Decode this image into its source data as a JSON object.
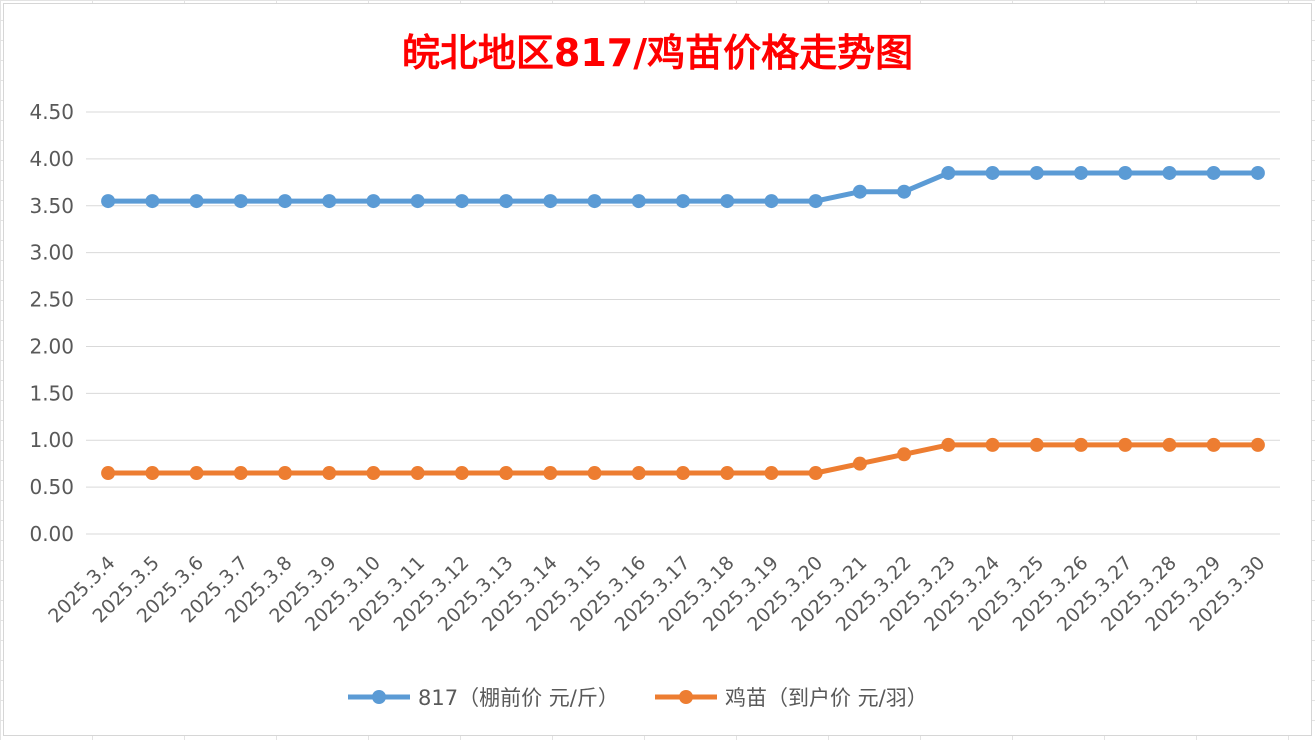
{
  "chart_data": {
    "type": "line",
    "title": "皖北地区817/鸡苗价格走势图",
    "categories": [
      "2025.3.4",
      "2025.3.5",
      "2025.3.6",
      "2025.3.7",
      "2025.3.8",
      "2025.3.9",
      "2025.3.10",
      "2025.3.11",
      "2025.3.12",
      "2025.3.13",
      "2025.3.14",
      "2025.3.15",
      "2025.3.16",
      "2025.3.17",
      "2025.3.18",
      "2025.3.19",
      "2025.3.20",
      "2025.3.21",
      "2025.3.22",
      "2025.3.23",
      "2025.3.24",
      "2025.3.25",
      "2025.3.26",
      "2025.3.27",
      "2025.3.28",
      "2025.3.29",
      "2025.3.30"
    ],
    "series": [
      {
        "name": "817（棚前价 元/斤）",
        "color": "#5b9bd5",
        "values": [
          3.55,
          3.55,
          3.55,
          3.55,
          3.55,
          3.55,
          3.55,
          3.55,
          3.55,
          3.55,
          3.55,
          3.55,
          3.55,
          3.55,
          3.55,
          3.55,
          3.55,
          3.65,
          3.65,
          3.85,
          3.85,
          3.85,
          3.85,
          3.85,
          3.85,
          3.85,
          3.85
        ]
      },
      {
        "name": "鸡苗（到户价 元/羽）",
        "color": "#ed7d31",
        "values": [
          0.65,
          0.65,
          0.65,
          0.65,
          0.65,
          0.65,
          0.65,
          0.65,
          0.65,
          0.65,
          0.65,
          0.65,
          0.65,
          0.65,
          0.65,
          0.65,
          0.65,
          0.75,
          0.85,
          0.95,
          0.95,
          0.95,
          0.95,
          0.95,
          0.95,
          0.95,
          0.95
        ]
      }
    ],
    "yticks": [
      "0.00",
      "0.50",
      "1.00",
      "1.50",
      "2.00",
      "2.50",
      "3.00",
      "3.50",
      "4.00",
      "4.50"
    ],
    "ylim": [
      0,
      4.5
    ],
    "grid": true,
    "legend_position": "bottom"
  }
}
